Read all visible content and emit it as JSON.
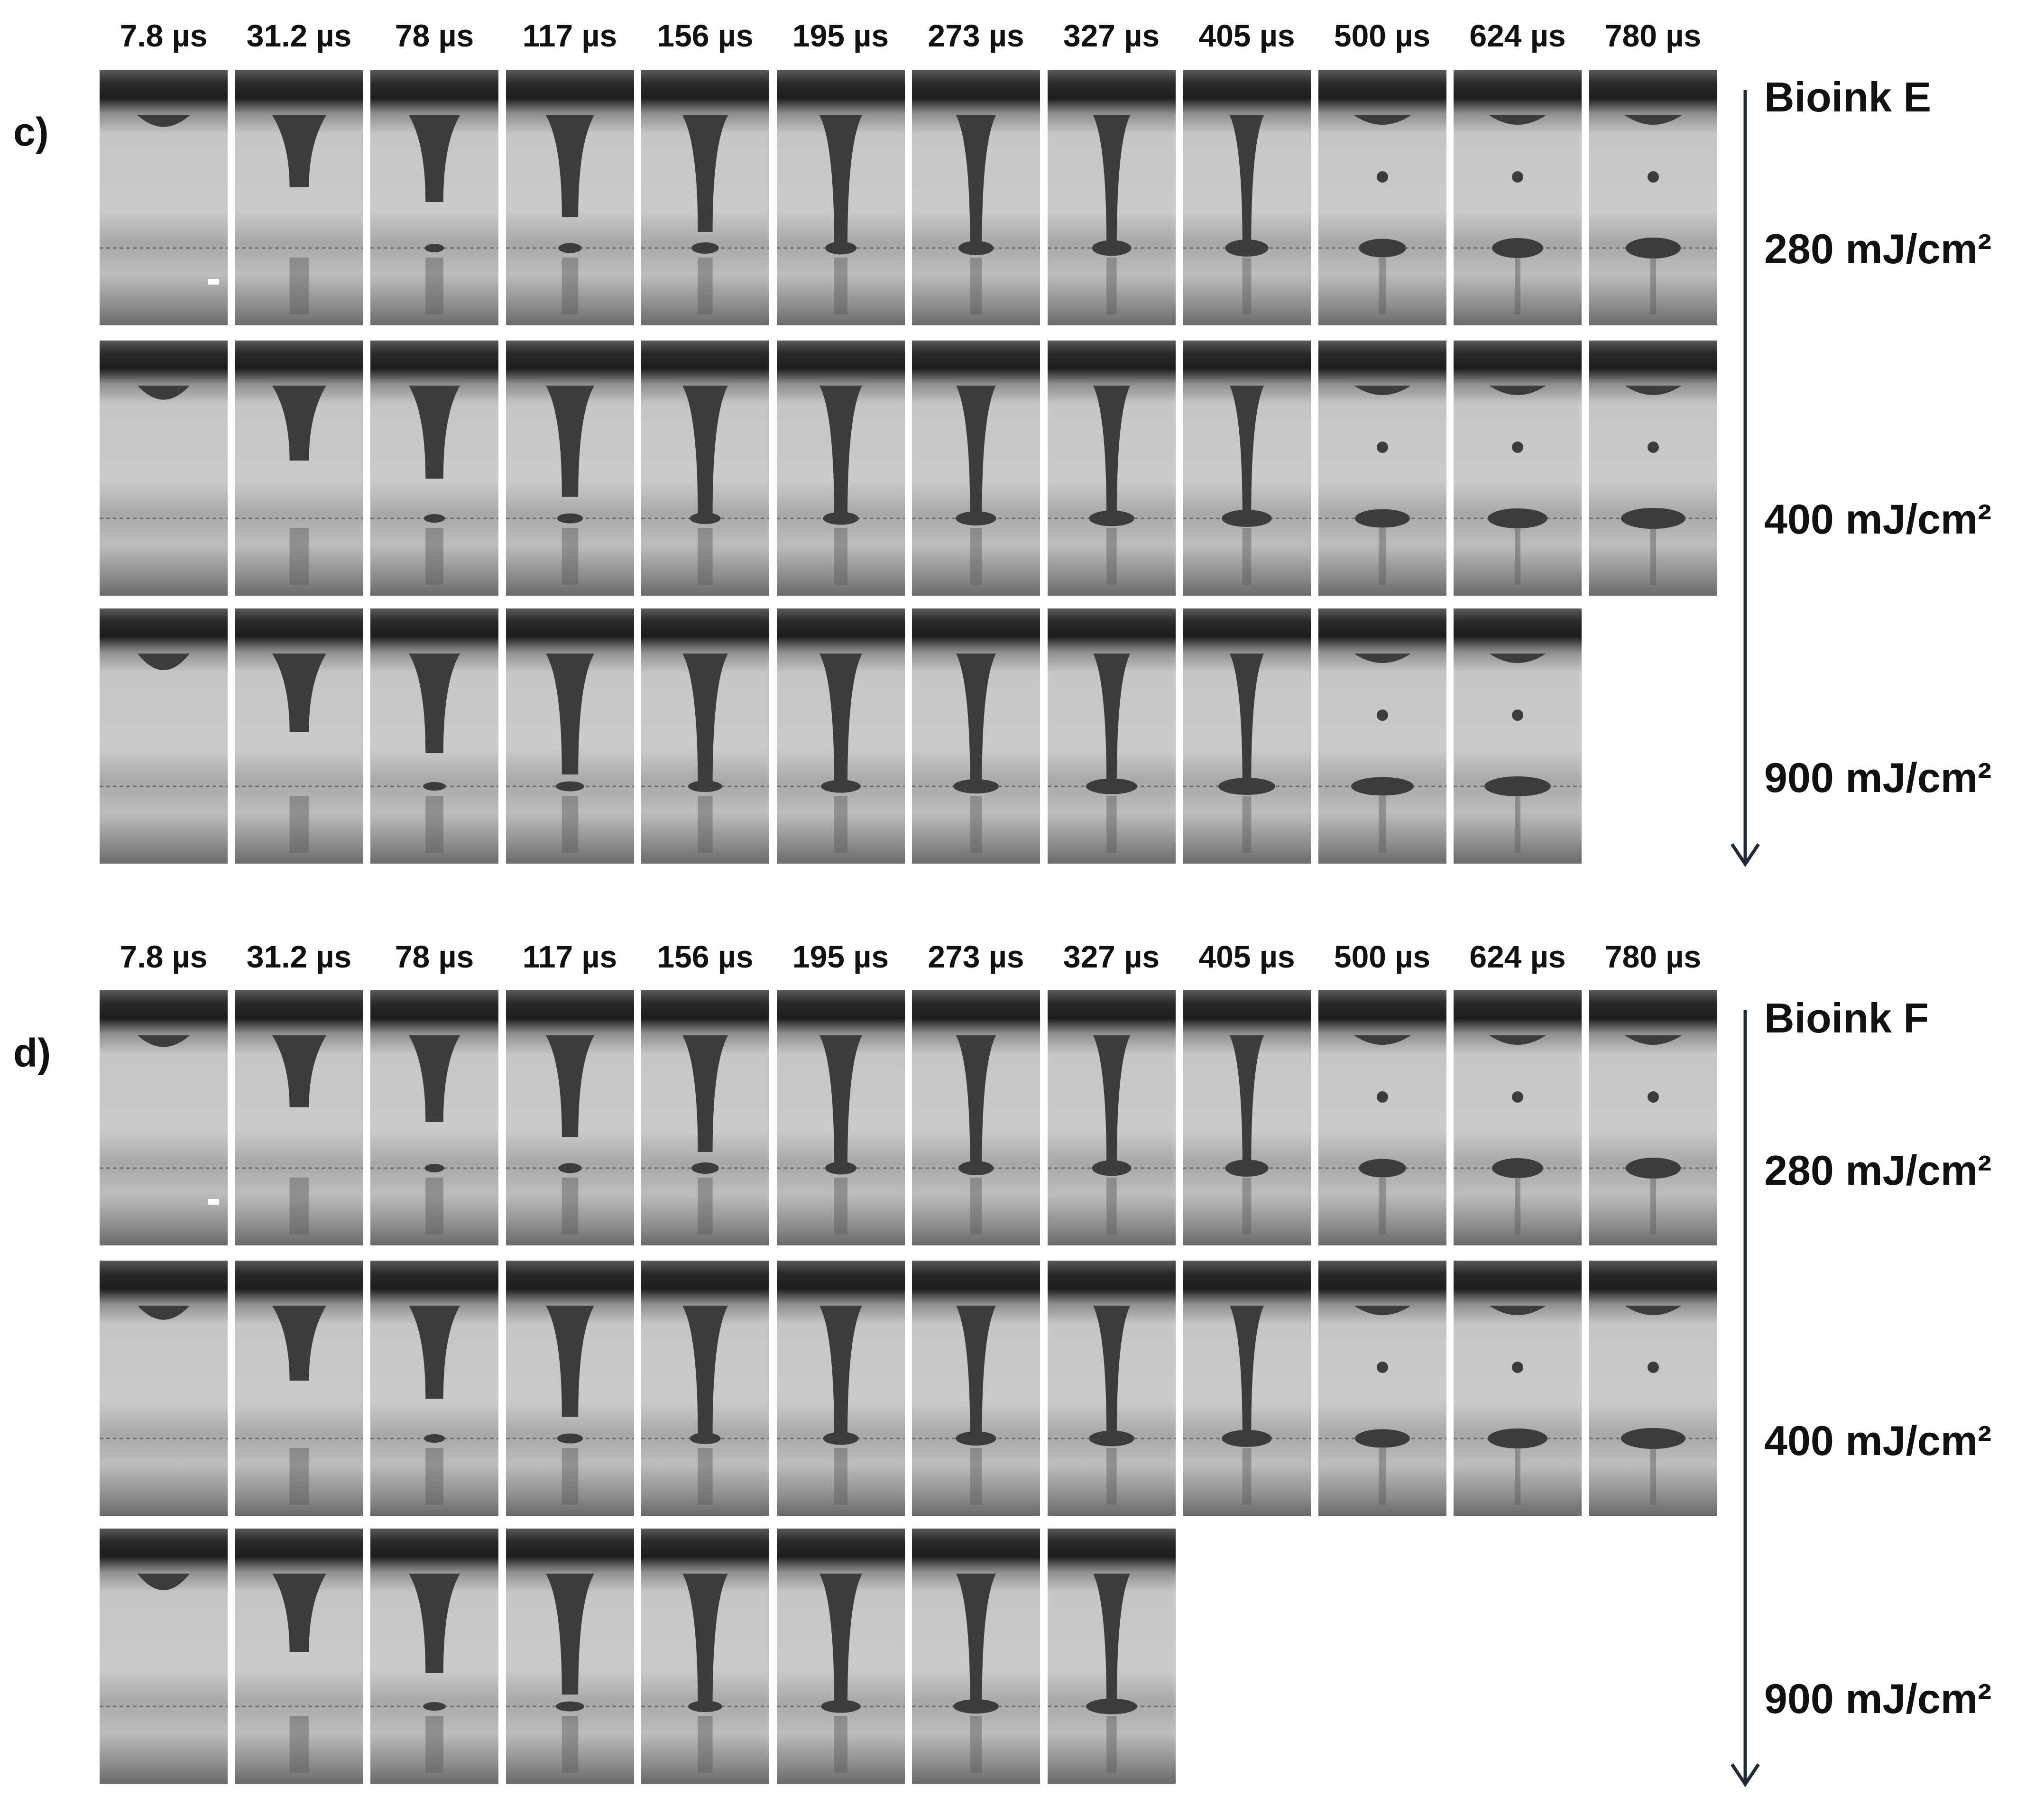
{
  "times": [
    "7.8 µs",
    "31.2 µs",
    "78 µs",
    "117 µs",
    "156 µs",
    "195 µs",
    "273 µs",
    "327 µs",
    "405 µs",
    "500 µs",
    "624 µs",
    "780 µs"
  ],
  "panels": [
    {
      "letter": "c)",
      "bioink": "Bioink  E",
      "rows": [
        {
          "fluence": "280 mJ/cm²",
          "frame_count": 12
        },
        {
          "fluence": "400 mJ/cm²",
          "frame_count": 12
        },
        {
          "fluence": "900 mJ/cm²",
          "frame_count": 11
        }
      ]
    },
    {
      "letter": "d)",
      "bioink": "Bioink  F",
      "rows": [
        {
          "fluence": "280 mJ/cm²",
          "frame_count": 12
        },
        {
          "fluence": "400 mJ/cm²",
          "frame_count": 12
        },
        {
          "fluence": "900 mJ/cm²",
          "frame_count": 8
        }
      ]
    }
  ],
  "colors": {
    "text": "#111111",
    "arrow": "#1f2b3a",
    "frame_light": "#c9c9c9",
    "frame_dark": "#2a2a2a",
    "jet": "#3c3c3c"
  }
}
